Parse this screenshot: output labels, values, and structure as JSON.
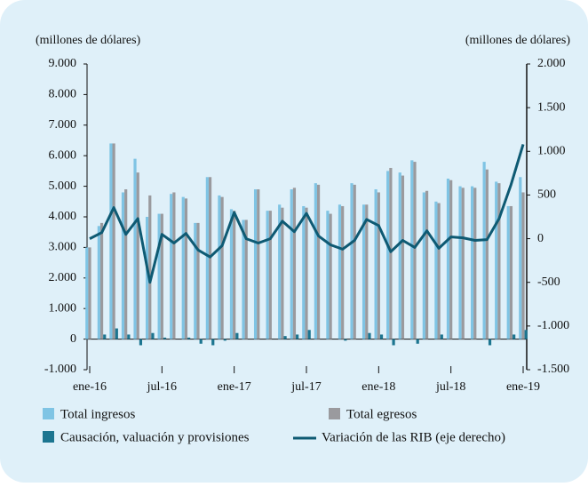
{
  "chart_data": {
    "type": "bar_line",
    "y_axis_label": "(millones de dólares)",
    "y2_axis_label": "(millones de dólares)",
    "categories": [
      "ene-16",
      null,
      null,
      null,
      null,
      null,
      "jul-16",
      null,
      null,
      null,
      null,
      null,
      "ene-17",
      null,
      null,
      null,
      null,
      null,
      "jul-17",
      null,
      null,
      null,
      null,
      null,
      "ene-18",
      null,
      null,
      null,
      null,
      null,
      "jul-18",
      null,
      null,
      null,
      null,
      null,
      "ene-19"
    ],
    "series": [
      {
        "name": "Total  ingresos",
        "color": "#7fc4e4",
        "kind": "bar",
        "values": [
          3000,
          3700,
          6400,
          4800,
          5900,
          4000,
          4100,
          4750,
          4650,
          3800,
          5300,
          4700,
          4250,
          3900,
          4900,
          4200,
          4400,
          4900,
          4350,
          5100,
          4200,
          4400,
          5100,
          4400,
          4900,
          5500,
          5450,
          5850,
          4800,
          4500,
          5250,
          5000,
          5000,
          5800,
          5150,
          4350,
          5300
        ]
      },
      {
        "name": "Total egresos",
        "color": "#9a9a9e",
        "kind": "bar",
        "values": [
          3000,
          3800,
          6400,
          4900,
          5450,
          4700,
          4100,
          4800,
          4600,
          3800,
          5300,
          4650,
          4200,
          3900,
          4900,
          4200,
          4300,
          4950,
          4300,
          5050,
          4100,
          4350,
          5050,
          4400,
          4800,
          5600,
          5350,
          5800,
          4850,
          4450,
          5200,
          4950,
          4950,
          5550,
          5100,
          4350,
          4800
        ]
      },
      {
        "name": "Causación, valuación y provisiones",
        "color": "#1c7590",
        "kind": "bar",
        "values": [
          0,
          150,
          350,
          150,
          -200,
          200,
          50,
          0,
          50,
          -150,
          -200,
          -50,
          200,
          0,
          0,
          0,
          100,
          150,
          300,
          0,
          0,
          -50,
          0,
          200,
          150,
          -200,
          0,
          -150,
          0,
          150,
          0,
          0,
          0,
          -200,
          0,
          150,
          300
        ]
      },
      {
        "name": "Variación de las RIB (eje derecho)",
        "color": "#0e5a73",
        "kind": "line",
        "axis": "y2",
        "values": [
          0,
          70,
          356,
          50,
          230,
          -500,
          50,
          -50,
          60,
          -130,
          -210,
          -80,
          300,
          0,
          -50,
          0,
          200,
          80,
          290,
          30,
          -70,
          -120,
          -20,
          220,
          150,
          -150,
          -20,
          -100,
          90,
          -110,
          20,
          10,
          -20,
          -10,
          230,
          620,
          1080
        ]
      }
    ],
    "ylim": [
      -1000,
      9000
    ],
    "yticks": [
      {
        "value": -1000,
        "label": "-1.000"
      },
      0,
      {
        "value": 1000,
        "label": "1.000"
      },
      {
        "value": 2000,
        "label": "2.000"
      },
      {
        "value": 3000,
        "label": "3.000"
      },
      {
        "value": 4000,
        "label": "4.000"
      },
      {
        "value": 5000,
        "label": "5.000"
      },
      {
        "value": 6000,
        "label": "6.000"
      },
      {
        "value": 7000,
        "label": "7.000"
      },
      {
        "value": 8000,
        "label": "8.000"
      },
      {
        "value": 9000,
        "label": "9.000"
      }
    ],
    "y2lim": [
      -1500,
      2000
    ],
    "y2ticks": [
      {
        "value": -1500,
        "label": "-1.500"
      },
      {
        "value": -1000,
        "label": "-1.000"
      },
      -500,
      0,
      500,
      {
        "value": 1000,
        "label": "1.000"
      },
      {
        "value": 1500,
        "label": "1.500"
      },
      {
        "value": 2000,
        "label": "2.000"
      }
    ]
  }
}
